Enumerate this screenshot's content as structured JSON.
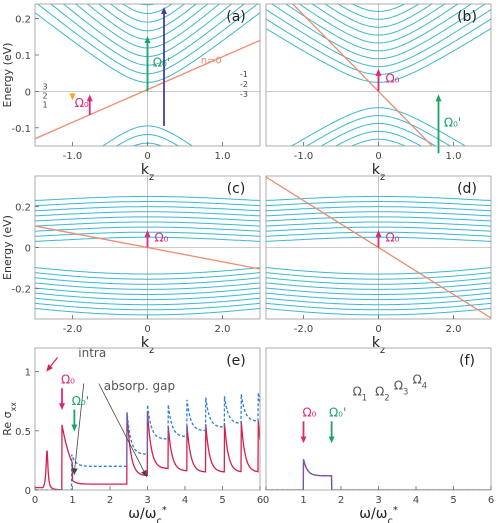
{
  "chart_data": [
    {
      "panel": "(a)",
      "type": "line",
      "xlabel": "k",
      "xlabel_sub": "z",
      "ylabel": "Energy (eV)",
      "xlim": [
        -1.5,
        1.5
      ],
      "ylim": [
        -0.15,
        0.24
      ],
      "xticks": [
        -1.0,
        0,
        1.0
      ],
      "yticks": [
        -0.1,
        0,
        0.1,
        0.2
      ],
      "xtick_labels": [
        "-1.0",
        "0",
        "1.0"
      ],
      "ytick_labels": [
        "-0.1",
        "0",
        "0.1",
        "0.2"
      ],
      "grid": false,
      "level_labels_left": [
        "3",
        "2",
        "1"
      ],
      "level_labels_right": [
        "-1",
        "-2",
        "-3"
      ],
      "n0_label": "n=0",
      "bands": {
        "conduction": {
          "color": "#3bb8d0",
          "count": 14,
          "dispersion": "hyperbolic",
          "gap_at_kz0": 0.0,
          "slope_eV_per_kz": 0.2
        },
        "valence": {
          "color": "#3bb8d0",
          "count": 14
        },
        "zeroth": {
          "color": "#f08a70",
          "slope_eV_per_kz": 0.09
        }
      },
      "transitions": [
        {
          "kz": -1.0,
          "from": -0.005,
          "to": 0.0,
          "color": "#f5a623",
          "label": ""
        },
        {
          "kz": -0.77,
          "from": -0.065,
          "to": 0.0,
          "color": "#e0287a",
          "label": "Ω₀"
        },
        {
          "kz": 0.0,
          "from": 0.0,
          "to": 0.16,
          "color": "#19a565",
          "label": "Ω₀'"
        },
        {
          "kz": 0.22,
          "from": -0.095,
          "to": 0.24,
          "color": "#4a3d9a",
          "label": ""
        }
      ]
    },
    {
      "panel": "(b)",
      "type": "line",
      "xlabel": "k",
      "xlabel_sub": "z",
      "xlim": [
        -1.5,
        1.5
      ],
      "ylim": [
        -0.15,
        0.24
      ],
      "xticks": [
        -1.0,
        0,
        1.0
      ],
      "xtick_labels": [
        "-1.0",
        "0",
        "1.0"
      ],
      "grid": false,
      "bands": {
        "conduction": {
          "color": "#3bb8d0",
          "count": 14
        },
        "valence": {
          "color": "#3bb8d0",
          "count": 14
        },
        "zeroth": {
          "color": "#f08a70",
          "slope_eV_per_kz": -0.21
        }
      },
      "transitions": [
        {
          "kz": 0.0,
          "from": 0.0,
          "to": 0.07,
          "color": "#e0287a",
          "label": "Ω₀"
        },
        {
          "kz": 0.8,
          "from": -0.17,
          "to": 0.0,
          "color": "#19a565",
          "label": "Ω₀'"
        }
      ]
    },
    {
      "panel": "(c)",
      "type": "line",
      "xlabel": "k",
      "xlabel_sub": "z",
      "ylabel": "Energy (eV)",
      "xlim": [
        -3.0,
        3.0
      ],
      "ylim": [
        -0.35,
        0.35
      ],
      "xticks": [
        -2.0,
        0,
        2.0
      ],
      "yticks": [
        -0.2,
        0,
        0.2
      ],
      "xtick_labels": [
        "-2.0",
        "0",
        "2.0"
      ],
      "ytick_labels": [
        "-0.2",
        "0",
        "0.2"
      ],
      "grid": false,
      "bands": {
        "conduction": {
          "color": "#3bb8d0",
          "count": 9
        },
        "valence": {
          "color": "#3bb8d0",
          "count": 9
        },
        "zeroth": {
          "color": "#f08a70",
          "slope_eV_per_kz": -0.035
        }
      },
      "transitions": [
        {
          "kz": 0.0,
          "from": 0.0,
          "to": 0.1,
          "color": "#e0287a",
          "label": "Ω₀"
        }
      ]
    },
    {
      "panel": "(d)",
      "type": "line",
      "xlabel": "k",
      "xlabel_sub": "z",
      "xlim": [
        -3.0,
        3.0
      ],
      "ylim": [
        -0.35,
        0.35
      ],
      "xticks": [
        -2.0,
        0,
        2.0
      ],
      "xtick_labels": [
        "-2.0",
        "0",
        "2.0"
      ],
      "grid": false,
      "bands": {
        "conduction": {
          "color": "#3bb8d0",
          "count": 9
        },
        "valence": {
          "color": "#3bb8d0",
          "count": 9
        },
        "zeroth": {
          "color": "#f08a70",
          "slope_eV_per_kz": -0.115
        }
      },
      "transitions": [
        {
          "kz": 0.0,
          "from": 0.0,
          "to": 0.1,
          "color": "#e0287a",
          "label": "Ω₀"
        }
      ]
    },
    {
      "panel": "(e)",
      "type": "line",
      "xlabel": "ω/ω",
      "xlabel_sub": "c",
      "xlabel_sup": "*",
      "ylabel": "Re σ",
      "ylabel_sub": "xx",
      "xlim": [
        0,
        6
      ],
      "ylim": [
        0,
        1.2
      ],
      "xticks": [
        0,
        1,
        2,
        3,
        4,
        5,
        6
      ],
      "yticks": [
        0,
        0.5,
        1
      ],
      "xtick_labels": [
        "0",
        "1",
        "2",
        "3",
        "4",
        "5",
        "6"
      ],
      "ytick_labels": [
        "0",
        "0.5",
        "1"
      ],
      "grid": false,
      "series": [
        {
          "color": "#d62050",
          "style": "solid",
          "step_edges": [
            1.0,
            2.45,
            3.0,
            3.55,
            4.05,
            4.55,
            5.05,
            5.5,
            5.95
          ],
          "step_levels": [
            0.05,
            0.12,
            0.18,
            0.16,
            0.15,
            0.15,
            0.15,
            0.15,
            0.15
          ],
          "peak_x": [
            0.72,
            2.45,
            3.0,
            3.55,
            4.05,
            4.55,
            5.05,
            5.5,
            5.95
          ],
          "peak_y": [
            0.55,
            0.67,
            0.66,
            0.55,
            0.56,
            0.57,
            0.58,
            0.58,
            0.6
          ]
        },
        {
          "color": "#2b7fd8",
          "style": "dashed",
          "step_edges": [
            1.0,
            2.45,
            3.0,
            3.55,
            4.05,
            4.55,
            5.05,
            5.5,
            5.95
          ],
          "step_levels": [
            0.2,
            0.3,
            0.43,
            0.45,
            0.5,
            0.53,
            0.56,
            0.58,
            0.6
          ],
          "peak_x": [
            0.98,
            2.45,
            3.0,
            3.55,
            4.05,
            4.55,
            5.05,
            5.5,
            5.95
          ],
          "peak_y": [
            0.3,
            0.67,
            0.72,
            0.73,
            0.77,
            0.79,
            0.8,
            0.81,
            0.83
          ]
        }
      ],
      "annotations": [
        {
          "text": "intra",
          "x": 0.62,
          "y": 1.21,
          "color": "#555555"
        },
        {
          "text": "absorp. gap",
          "x": 1.3,
          "y": 0.93,
          "color": "#555555"
        }
      ],
      "arrow_labels": [
        {
          "text": "Ω₀",
          "x": 0.72,
          "color": "#e0287a"
        },
        {
          "text": "Ω₀'",
          "x": 1.05,
          "color": "#19a565"
        }
      ]
    },
    {
      "panel": "(f)",
      "type": "line",
      "xlabel": "ω/ω",
      "xlabel_sub": "c",
      "xlabel_sup": "*",
      "xlim": [
        0,
        6
      ],
      "ylim": [
        0,
        1.2
      ],
      "xticks": [
        0,
        1,
        2,
        3,
        4,
        5,
        6
      ],
      "xtick_labels": [
        "0",
        "1",
        "2",
        "3",
        "4",
        "5",
        "6"
      ],
      "grid": false,
      "series": [
        {
          "color": "#d62050",
          "style": "solid",
          "step_edges": [
            1.0,
            1.75,
            2.45,
            3.0,
            3.55,
            4.05,
            4.55,
            5.05,
            5.5,
            5.95
          ],
          "step_levels": [
            0.12,
            0.1,
            0.12,
            0.18,
            0.16,
            0.15,
            0.15,
            0.15,
            0.15,
            0.15
          ],
          "peak_x": [
            1.0,
            2.45,
            3.0,
            3.55,
            4.05,
            4.55,
            5.05,
            5.5,
            5.95
          ],
          "peak_y": [
            0.26,
            0.67,
            0.64,
            0.55,
            0.56,
            0.57,
            0.58,
            0.58,
            0.6
          ]
        },
        {
          "color": "#2b7fd8",
          "style": "dashed",
          "step_edges": [
            1.0,
            1.75,
            2.45,
            3.0,
            3.55,
            4.05,
            4.55,
            5.05,
            5.5,
            5.95
          ],
          "step_levels": [
            0.12,
            0.1,
            0.3,
            0.43,
            0.45,
            0.5,
            0.53,
            0.56,
            0.58,
            0.6
          ],
          "peak_x": [
            1.0,
            2.45,
            3.0,
            3.55,
            4.05,
            4.55,
            5.05,
            5.5,
            5.95
          ],
          "peak_y": [
            0.26,
            0.67,
            0.72,
            0.73,
            0.77,
            0.79,
            0.8,
            0.81,
            0.83
          ]
        }
      ],
      "arrow_labels": [
        {
          "text": "Ω₀",
          "x": 1.0,
          "color": "#e0287a"
        },
        {
          "text": "Ω₀'",
          "x": 1.75,
          "color": "#19a565"
        },
        {
          "text": "Ω",
          "sub": "1",
          "x": 2.45,
          "color": "#555555"
        },
        {
          "text": "Ω",
          "sub": "2",
          "x": 3.05,
          "color": "#555555"
        },
        {
          "text": "Ω",
          "sub": "3",
          "x": 3.55,
          "color": "#555555"
        },
        {
          "text": "Ω",
          "sub": "4",
          "x": 4.05,
          "color": "#555555"
        }
      ]
    }
  ]
}
